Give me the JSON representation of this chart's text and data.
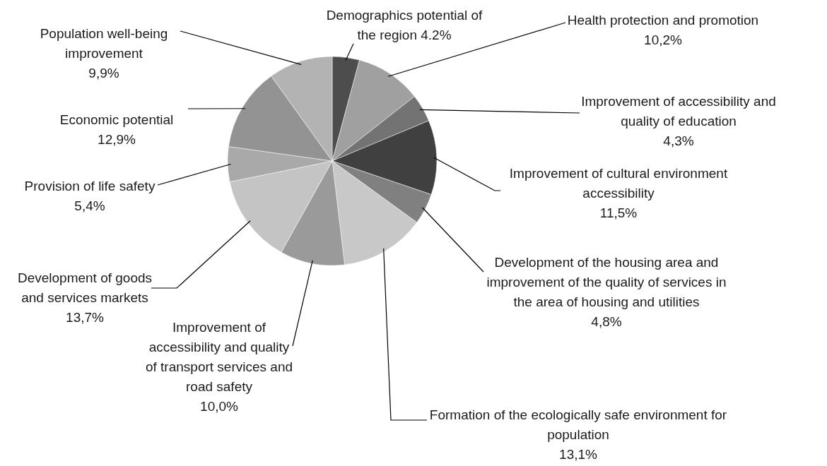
{
  "chart_data": {
    "type": "pie",
    "categories": [
      "Demographics potential of the region",
      "Health protection and promotion",
      "Improvement of accessibility and quality of education",
      "Improvement of cultural environment accessibility",
      "Development of the housing area and improvement of the quality of services in the area of housing and utilities",
      "Formation of the ecologically safe environment for population",
      "Improvement of accessibility and quality of transport services and road safety",
      "Development of goods and services markets",
      "Provision of life safety",
      "Economic potential",
      "Population well-being improvement"
    ],
    "values": [
      4.2,
      10.2,
      4.3,
      11.5,
      4.8,
      13.1,
      10.0,
      13.7,
      5.4,
      12.9,
      9.9
    ],
    "value_labels": [
      "4.2%",
      "10,2%",
      "4,3%",
      "11,5%",
      "4,8%",
      "13,1%",
      "10,0%",
      "13,7%",
      "5,4%",
      "12,9%",
      "9,9%"
    ],
    "colors": [
      "#4d4d4d",
      "#a0a0a0",
      "#737373",
      "#404040",
      "#808080",
      "#c8c8c8",
      "#9a9a9a",
      "#c4c4c4",
      "#a9a9a9",
      "#939393",
      "#b3b3b3"
    ]
  }
}
